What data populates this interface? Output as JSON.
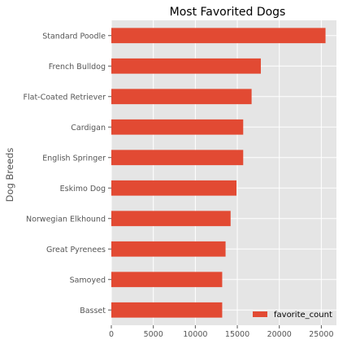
{
  "chart_data": {
    "type": "bar",
    "orientation": "horizontal",
    "title": "Most Favorited Dogs",
    "xlabel": "",
    "ylabel": "Dog Breeds",
    "categories": [
      "Standard Poodle",
      "French Bulldog",
      "Flat-Coated Retriever",
      "Cardigan",
      "English Springer",
      "Eskimo Dog",
      "Norwegian Elkhound",
      "Great Pyrenees",
      "Samoyed",
      "Basset"
    ],
    "series": [
      {
        "name": "favorite_count",
        "values": [
          25500,
          17800,
          16700,
          15700,
          15700,
          14900,
          14200,
          13600,
          13200,
          13200
        ]
      }
    ],
    "xlim": [
      0,
      26800
    ],
    "xticks": [
      0,
      5000,
      10000,
      15000,
      20000,
      25000
    ],
    "grid": true,
    "legend": "lower-right",
    "colors": {
      "bar": "#E24A33",
      "background": "#E5E5E5",
      "grid": "#FFFFFF"
    }
  }
}
